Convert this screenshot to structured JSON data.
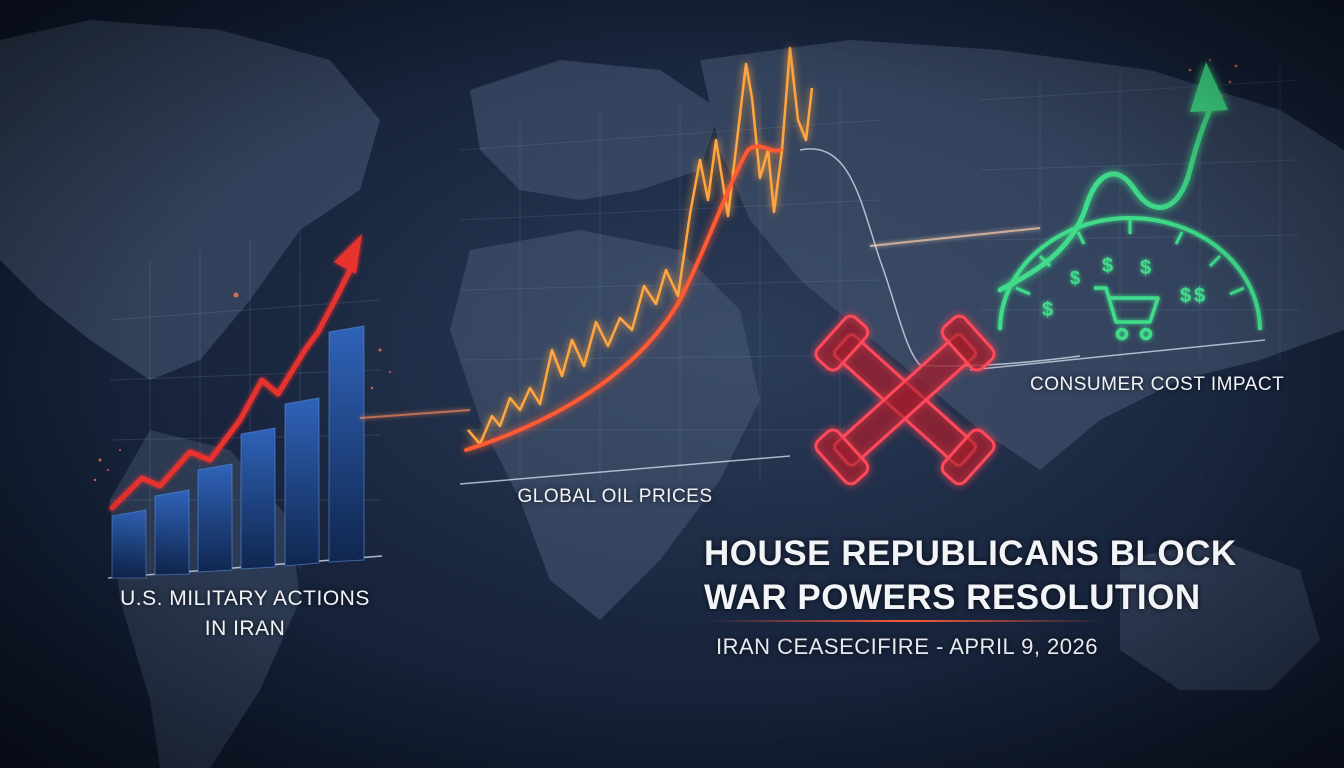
{
  "labels": {
    "military_line1": "U.S. MILITARY ACTIONS",
    "military_line2": "IN IRAN",
    "oil": "GLOBAL OIL PRICES",
    "consumer": "CONSUMER COST IMPACT"
  },
  "headline": {
    "line1": "HOUSE REPUBLICANS BLOCK",
    "line2": "WAR POWERS RESOLUTION"
  },
  "subline": "IRAN CEASECIFIRE - APRIL 9, 2026",
  "icons": [
    "bar-chart-icon",
    "line-chart-icon",
    "broken-pipe-x-icon",
    "gauge-icon",
    "shopping-cart-icon",
    "dollar-sign-icon",
    "trend-arrow-icon"
  ],
  "colors": {
    "bars": "#2a5aa8",
    "military_arrow": "#e8322e",
    "oil_line": "#ffa640",
    "oil_curve": "#ff5a30",
    "x_mark": "#ff4a5a",
    "consumer": "#3fdc8a"
  },
  "currency_symbol": "$"
}
